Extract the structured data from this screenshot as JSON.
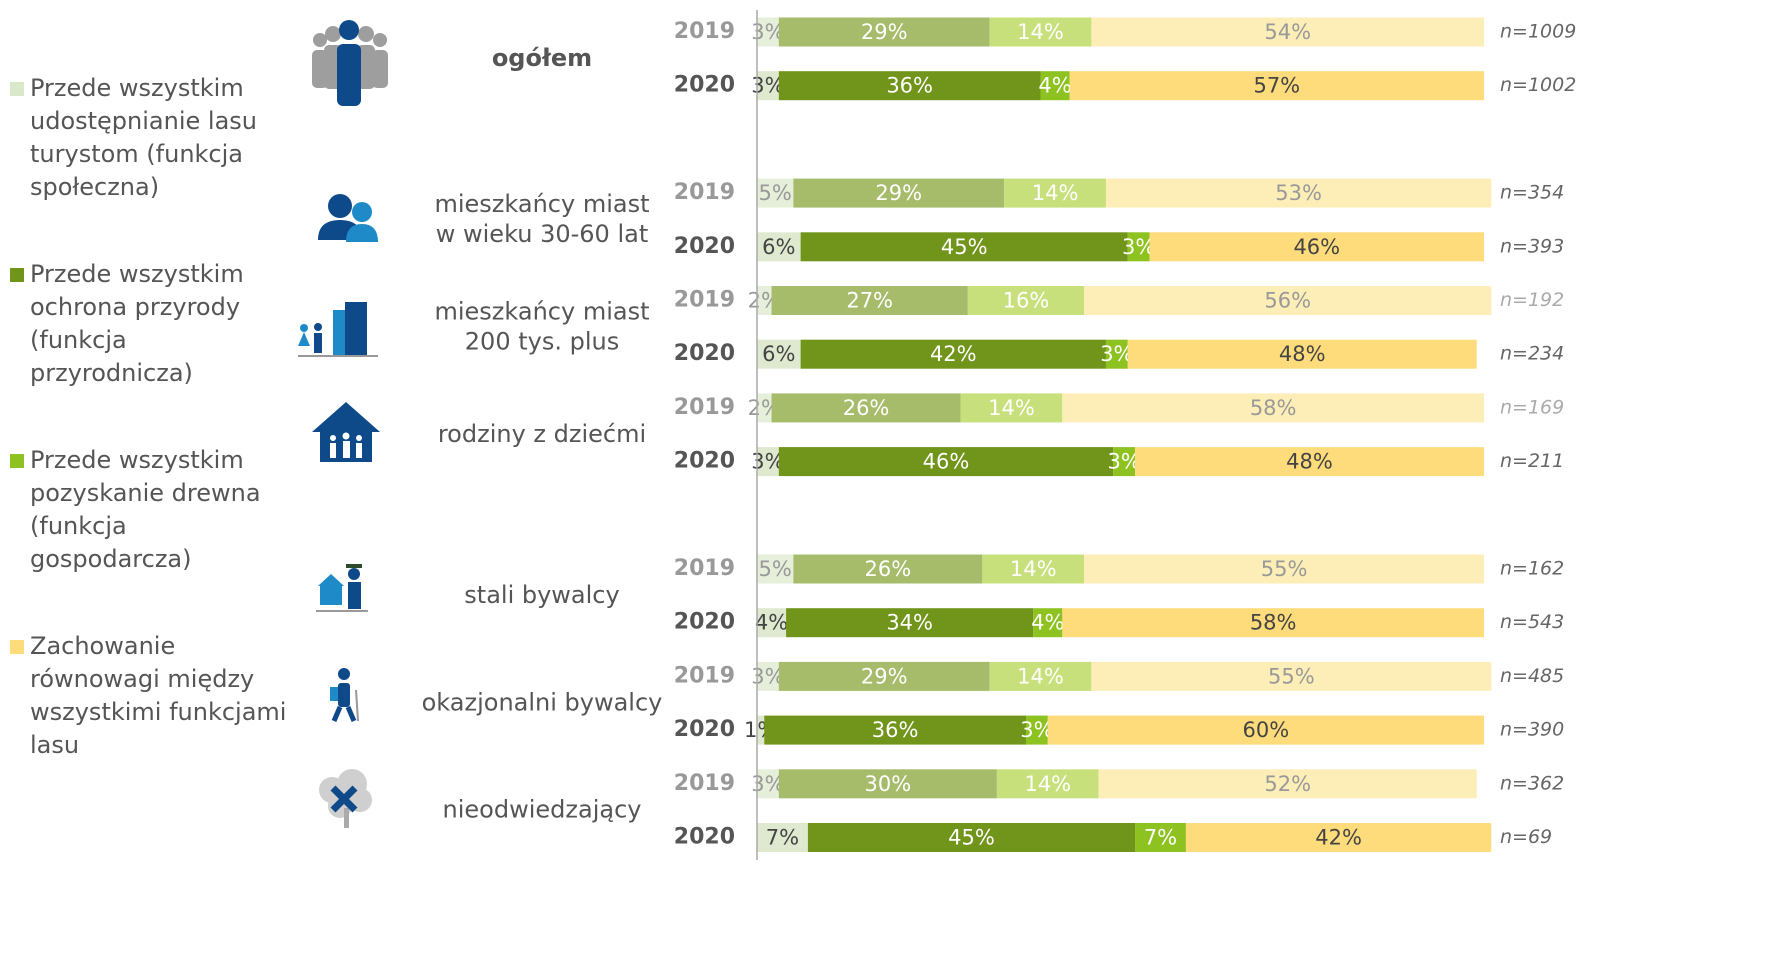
{
  "chart_data": {
    "type": "bar",
    "orientation": "horizontal",
    "stacked": true,
    "categories": [
      "2019",
      "2020",
      "2019",
      "2020",
      "2019",
      "2020",
      "2019",
      "2020",
      "2019",
      "2020",
      "2019",
      "2020",
      "2019",
      "2020"
    ],
    "groups": [
      {
        "label": [
          "ogółem"
        ]
      },
      {
        "label": [
          "mieszkańcy miast",
          "w wieku 30-60 lat"
        ]
      },
      {
        "label": [
          "mieszkańcy miast",
          "200 tys. plus"
        ]
      },
      {
        "label": [
          "rodziny z dziećmi"
        ]
      },
      {
        "label": [
          "stali bywalcy"
        ]
      },
      {
        "label": [
          "okazjonalni bywalcy"
        ]
      },
      {
        "label": [
          "nieodwiedzający"
        ]
      }
    ],
    "xlim": [
      0,
      100
    ],
    "series": [
      {
        "name": "Przede wszystkim udostępnianie lasu turystom (funkcja społeczna)",
        "color": "#d8e8c8",
        "colors": {
          "2019": "#e6efd9",
          "2020": "#dfe9d0"
        },
        "values": [
          3,
          3,
          5,
          6,
          2,
          6,
          2,
          3,
          5,
          4,
          3,
          1,
          3,
          7
        ],
        "value_labels": [
          "3%",
          "3%",
          "5%",
          "6%",
          "2%",
          "6%",
          "2%",
          "3%",
          "5%",
          "4%",
          "3%",
          "1%",
          "3%",
          "7%"
        ]
      },
      {
        "name": "Przede wszystkim ochrona przyrody (funkcja przyrodnicza)",
        "color": "#71941a",
        "colors": {
          "2019": "#a6bc6b",
          "2020": "#71941a"
        },
        "values": [
          29,
          36,
          29,
          45,
          27,
          42,
          26,
          46,
          26,
          34,
          29,
          36,
          30,
          45
        ],
        "value_labels": [
          "29%",
          "36%",
          "29%",
          "45%",
          "27%",
          "42%",
          "26%",
          "46%",
          "26%",
          "34%",
          "29%",
          "36%",
          "30%",
          "45%"
        ]
      },
      {
        "name": "Przede wszystkim pozyskanie drewna (funkcja gospodarcza)",
        "color": "#8dc220",
        "colors": {
          "2019": "#c8e07c",
          "2020": "#8dc220"
        },
        "values": [
          14,
          4,
          14,
          3,
          16,
          3,
          14,
          3,
          14,
          4,
          14,
          3,
          14,
          7
        ],
        "value_labels": [
          "14%",
          "4%",
          "14%",
          "3%",
          "16%",
          "3%",
          "14%",
          "3%",
          "14%",
          "4%",
          "14%",
          "3%",
          "14%",
          "7%"
        ]
      },
      {
        "name": "Zachowanie równowagi między wszystkimi funkcjami lasu",
        "color": "#fedc7b",
        "colors": {
          "2019": "#fdeeb8",
          "2020": "#fedc7b"
        },
        "values": [
          54,
          57,
          53,
          46,
          56,
          48,
          58,
          48,
          55,
          58,
          55,
          60,
          52,
          42
        ],
        "value_labels": [
          "54%",
          "57%",
          "53%",
          "46%",
          "56%",
          "48%",
          "58%",
          "48%",
          "55%",
          "58%",
          "55%",
          "60%",
          "52%",
          "42%"
        ]
      }
    ],
    "n_labels": [
      "n=1009",
      "n=1002",
      "n=354",
      "n=393",
      "n=192",
      "n=234",
      "n=169",
      "n=211",
      "n=162",
      "n=543",
      "n=485",
      "n=390",
      "n=362",
      "n=69"
    ]
  }
}
